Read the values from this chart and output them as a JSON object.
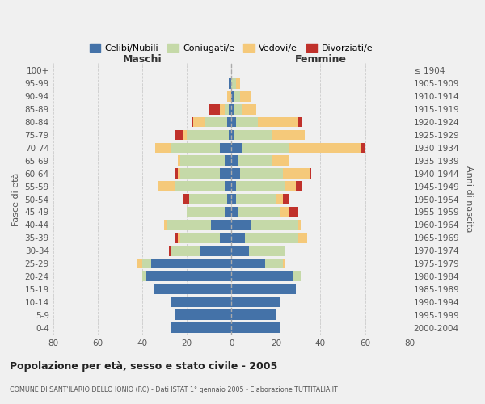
{
  "age_groups": [
    "0-4",
    "5-9",
    "10-14",
    "15-19",
    "20-24",
    "25-29",
    "30-34",
    "35-39",
    "40-44",
    "45-49",
    "50-54",
    "55-59",
    "60-64",
    "65-69",
    "70-74",
    "75-79",
    "80-84",
    "85-89",
    "90-94",
    "95-99",
    "100+"
  ],
  "birth_years": [
    "2000-2004",
    "1995-1999",
    "1990-1994",
    "1985-1989",
    "1980-1984",
    "1975-1979",
    "1970-1974",
    "1965-1969",
    "1960-1964",
    "1955-1959",
    "1950-1954",
    "1945-1949",
    "1940-1944",
    "1935-1939",
    "1930-1934",
    "1925-1929",
    "1920-1924",
    "1915-1919",
    "1910-1914",
    "1905-1909",
    "≤ 1904"
  ],
  "maschi": {
    "celibi": [
      27,
      25,
      27,
      35,
      38,
      36,
      14,
      5,
      9,
      3,
      2,
      3,
      5,
      3,
      5,
      1,
      2,
      1,
      0,
      1,
      0
    ],
    "coniugati": [
      0,
      0,
      0,
      0,
      2,
      4,
      13,
      18,
      20,
      17,
      17,
      22,
      18,
      20,
      22,
      19,
      10,
      2,
      0,
      0,
      0
    ],
    "vedovi": [
      0,
      0,
      0,
      0,
      0,
      2,
      0,
      1,
      1,
      0,
      0,
      8,
      1,
      1,
      7,
      2,
      5,
      2,
      2,
      0,
      0
    ],
    "divorziati": [
      0,
      0,
      0,
      0,
      0,
      0,
      1,
      1,
      0,
      0,
      3,
      0,
      1,
      0,
      0,
      3,
      1,
      5,
      0,
      0,
      0
    ]
  },
  "femmine": {
    "nubili": [
      22,
      20,
      22,
      29,
      28,
      15,
      8,
      6,
      9,
      3,
      2,
      2,
      4,
      3,
      5,
      1,
      2,
      1,
      1,
      0,
      0
    ],
    "coniugate": [
      0,
      0,
      0,
      0,
      3,
      8,
      16,
      24,
      21,
      19,
      18,
      22,
      19,
      15,
      21,
      17,
      10,
      4,
      3,
      2,
      0
    ],
    "vedove": [
      0,
      0,
      0,
      0,
      0,
      1,
      0,
      4,
      1,
      4,
      3,
      5,
      12,
      8,
      32,
      15,
      18,
      6,
      5,
      2,
      0
    ],
    "divorziate": [
      0,
      0,
      0,
      0,
      0,
      0,
      0,
      0,
      0,
      4,
      3,
      3,
      1,
      0,
      2,
      0,
      2,
      0,
      0,
      0,
      0
    ]
  },
  "colors": {
    "celibi": "#4472a8",
    "coniugati": "#c5d9a8",
    "vedovi": "#f5c97a",
    "divorziati": "#c0312b"
  },
  "xlim": 80,
  "title": "Popolazione per età, sesso e stato civile - 2005",
  "subtitle": "COMUNE DI SANT'ILARIO DELLO IONIO (RC) - Dati ISTAT 1° gennaio 2005 - Elaborazione TUTTITALIA.IT",
  "ylabel": "Fasce di età",
  "right_label": "Anni di nascita",
  "maschi_label": "Maschi",
  "femmine_label": "Femmine",
  "legend_labels": [
    "Celibi/Nubili",
    "Coniugati/e",
    "Vedovi/e",
    "Divorziati/e"
  ],
  "bg_color": "#f0f0f0",
  "grid_color": "#cccccc"
}
